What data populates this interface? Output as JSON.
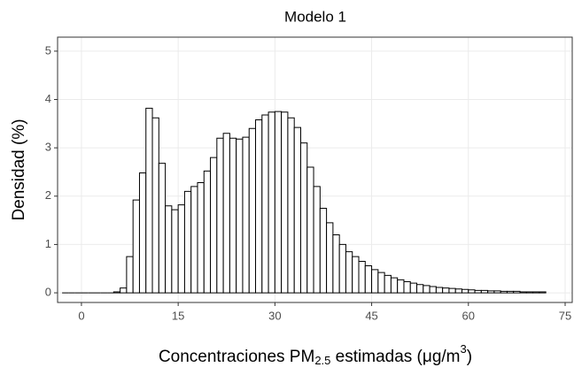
{
  "chart_data": {
    "type": "histogram",
    "title": "Modelo 1",
    "x_label": {
      "main": "Concentraciones  PM",
      "sub": "2.5",
      "middle": " estimadas (μg/m",
      "sup": "3",
      "end": ")"
    },
    "y_label": "Densidad (%)",
    "bins": [
      -3,
      -2,
      -1,
      0,
      1,
      2,
      3,
      4,
      5,
      6,
      7,
      8,
      9,
      10,
      11,
      12,
      13,
      14,
      15,
      16,
      17,
      18,
      19,
      20,
      21,
      22,
      23,
      24,
      25,
      26,
      27,
      28,
      29,
      30,
      31,
      32,
      33,
      34,
      35,
      36,
      37,
      38,
      39,
      40,
      41,
      42,
      43,
      44,
      45,
      46,
      47,
      48,
      49,
      50,
      51,
      52,
      53,
      54,
      55,
      56,
      57,
      58,
      59,
      60,
      61,
      62,
      63,
      64,
      65,
      66,
      67,
      68,
      69,
      70,
      71,
      72
    ],
    "values": [
      0,
      0,
      0,
      0,
      0,
      0,
      0,
      0,
      0.02,
      0.1,
      0.75,
      1.92,
      2.48,
      3.82,
      3.62,
      2.68,
      1.8,
      1.72,
      1.82,
      2.1,
      2.2,
      2.28,
      2.52,
      2.8,
      3.2,
      3.3,
      3.2,
      3.18,
      3.22,
      3.4,
      3.58,
      3.68,
      3.74,
      3.75,
      3.74,
      3.62,
      3.42,
      3.1,
      2.6,
      2.2,
      1.75,
      1.45,
      1.2,
      1.0,
      0.85,
      0.75,
      0.65,
      0.56,
      0.48,
      0.42,
      0.36,
      0.31,
      0.27,
      0.23,
      0.2,
      0.17,
      0.15,
      0.13,
      0.11,
      0.1,
      0.09,
      0.08,
      0.07,
      0.06,
      0.05,
      0.05,
      0.04,
      0.04,
      0.03,
      0.03,
      0.03,
      0.02,
      0.02,
      0.02,
      0.02
    ],
    "color": "#ffffff",
    "edgecolor": "#000000",
    "xlim": [
      -3.7,
      76.1
    ],
    "ylim": [
      -0.2,
      5.29
    ],
    "xticks": [
      0,
      15,
      30,
      45,
      60,
      75
    ],
    "yticks": [
      0,
      1,
      2,
      3,
      4,
      5
    ],
    "grid": true
  }
}
